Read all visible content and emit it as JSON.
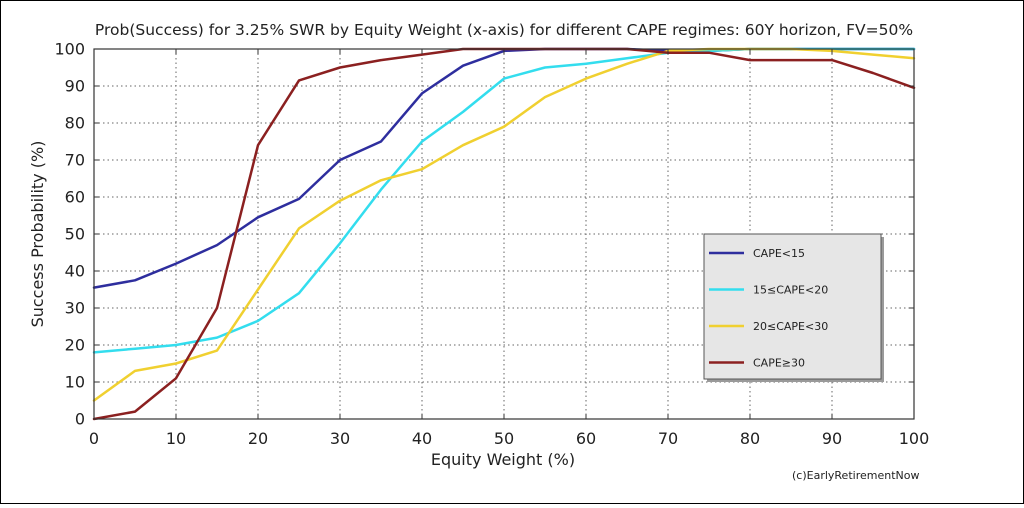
{
  "chart_data": {
    "type": "line",
    "title": "Prob(Success) for 3.25% SWR by Equity Weight (x-axis) for different CAPE regimes: 60Y horizon, FV=50%",
    "xlabel": "Equity Weight (%)",
    "ylabel": "Success Probability (%)",
    "xlim": [
      0,
      100
    ],
    "ylim": [
      0,
      100
    ],
    "xticks": [
      0,
      10,
      20,
      30,
      40,
      50,
      60,
      70,
      80,
      90,
      100
    ],
    "yticks": [
      0,
      10,
      20,
      30,
      40,
      50,
      60,
      70,
      80,
      90,
      100
    ],
    "grid": true,
    "legend_position": "right",
    "credit": "(c)EarlyRetirementNow",
    "x": [
      0,
      5,
      10,
      15,
      20,
      25,
      30,
      35,
      40,
      45,
      50,
      55,
      60,
      65,
      70,
      75,
      80,
      85,
      90,
      95,
      100
    ],
    "series": [
      {
        "name": "CAPE<15",
        "color": "#2e2e9e",
        "values": [
          35.5,
          37.5,
          42,
          47,
          54.5,
          59.5,
          70,
          75,
          88,
          95.5,
          99.5,
          100,
          100,
          100,
          99.5,
          99.5,
          100,
          100,
          100,
          100,
          100
        ]
      },
      {
        "name": "15≤CAPE<20",
        "color": "#33ddee",
        "values": [
          18,
          19,
          20,
          22,
          26.5,
          34,
          47.5,
          62,
          75,
          83,
          92,
          95,
          96,
          97.5,
          99,
          99.5,
          100,
          100,
          100,
          100,
          100
        ]
      },
      {
        "name": "20≤CAPE<30",
        "color": "#f0d030",
        "values": [
          5,
          13,
          15,
          18.5,
          35,
          51.5,
          59,
          64.5,
          67.5,
          74,
          79,
          87,
          92,
          96,
          99.5,
          100,
          100,
          100,
          99.5,
          98.5,
          97.5
        ]
      },
      {
        "name": "CAPE≥30",
        "color": "#8b2020",
        "values": [
          0,
          2,
          11,
          30,
          74,
          91.5,
          95,
          97,
          98.5,
          100,
          100,
          100,
          100,
          100,
          99,
          99,
          97,
          97,
          97,
          93.5,
          89.5
        ]
      }
    ]
  }
}
